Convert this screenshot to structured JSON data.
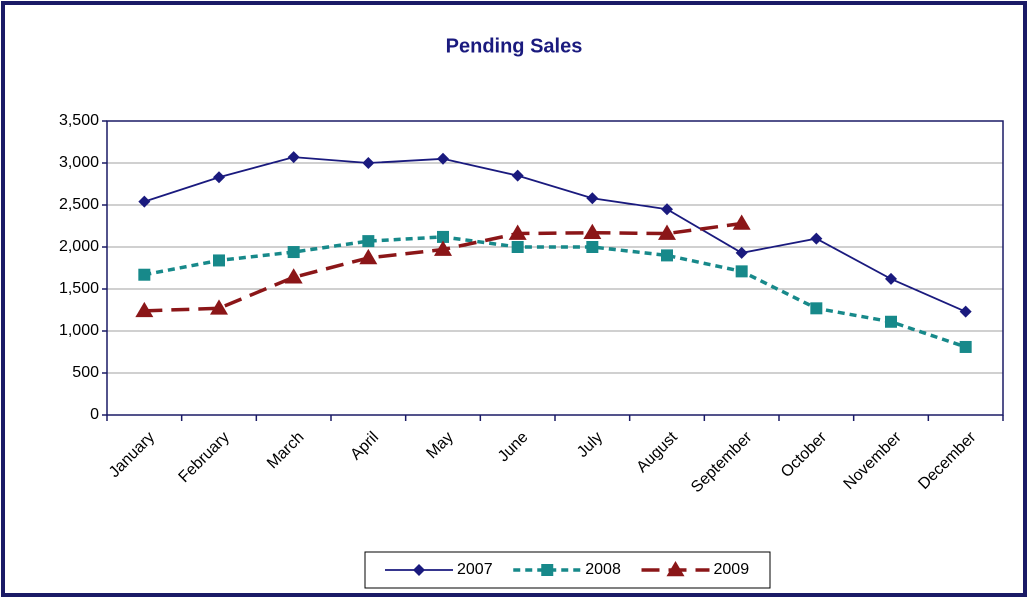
{
  "chart_data": {
    "type": "line",
    "title": "Pending Sales",
    "categories": [
      "January",
      "February",
      "March",
      "April",
      "May",
      "June",
      "July",
      "August",
      "September",
      "October",
      "November",
      "December"
    ],
    "series": [
      {
        "name": "2007",
        "color": "#1a1a7e",
        "marker": "diamond",
        "dash": "solid",
        "values": [
          2540,
          2830,
          3070,
          3000,
          3050,
          2850,
          2580,
          2450,
          1930,
          2100,
          1620,
          1230
        ]
      },
      {
        "name": "2008",
        "color": "#17898a",
        "marker": "square",
        "dash": "dotted",
        "values": [
          1670,
          1840,
          1940,
          2070,
          2120,
          2000,
          2000,
          1900,
          1710,
          1270,
          1110,
          810
        ]
      },
      {
        "name": "2009",
        "color": "#8b1618",
        "marker": "triangle",
        "dash": "dashed",
        "values": [
          1240,
          1270,
          1640,
          1870,
          1970,
          2160,
          2170,
          2160,
          2280,
          null,
          null,
          null
        ]
      }
    ],
    "ylim": [
      0,
      3500
    ],
    "yticks": [
      0,
      500,
      {
        "value": 1000,
        "label": "1,000"
      },
      {
        "value": 1500,
        "label": "1,500"
      },
      {
        "value": 2000,
        "label": "2,000"
      },
      {
        "value": 2500,
        "label": "2,500"
      },
      {
        "value": 3000,
        "label": "3,000"
      },
      {
        "value": 3500,
        "label": "3,500"
      }
    ],
    "grid": true,
    "legend": "bottom"
  }
}
